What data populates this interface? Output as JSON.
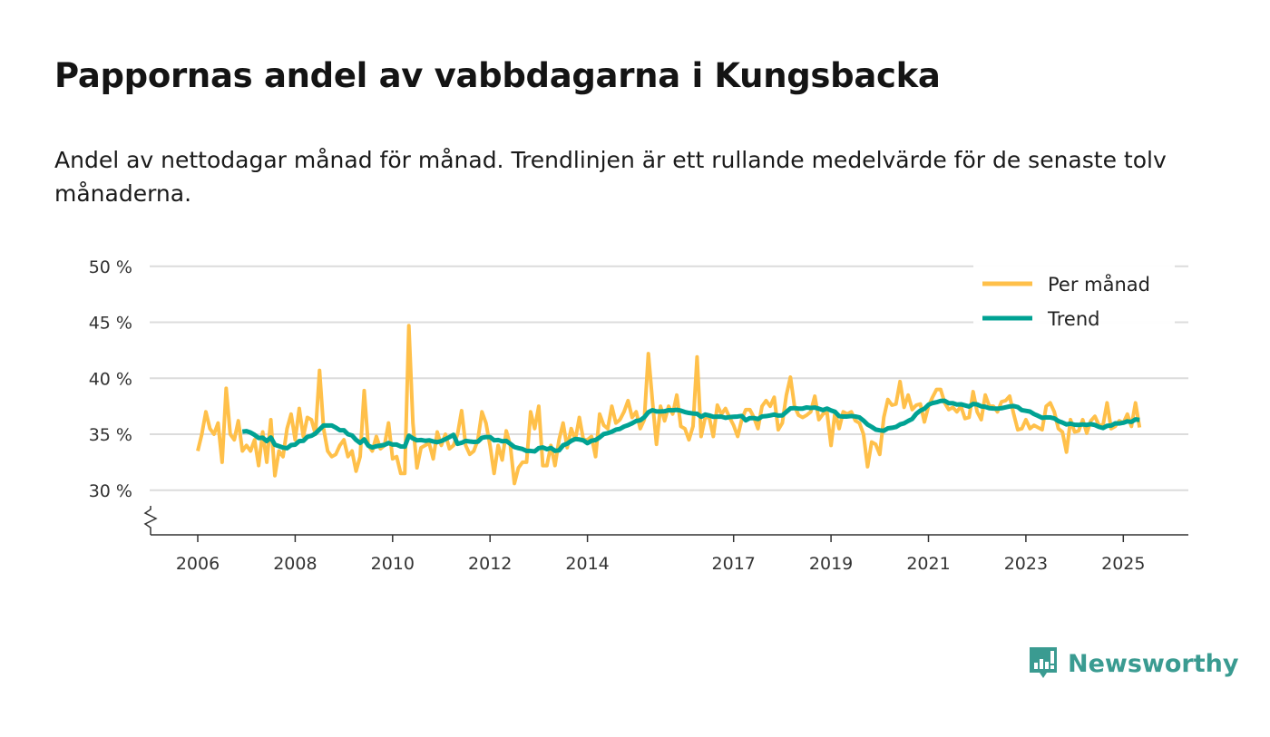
{
  "title": "Pappornas andel av vabbdagarna i Kungsbacka",
  "subtitle": "Andel av nettodagar månad för månad. Trendlinjen är ett rullande medelvärde för de senaste tolv månaderna.",
  "brand": {
    "name": "Newsworthy",
    "color": "#3a9b91"
  },
  "chart_data": {
    "type": "line",
    "title": "Pappornas andel av vabbdagarna i Kungsbacka",
    "xlabel": "",
    "ylabel": "",
    "ylim": [
      26,
      50
    ],
    "y_ticks": [
      30,
      35,
      40,
      45,
      50
    ],
    "y_tick_labels": [
      "30 %",
      "35 %",
      "40 %",
      "45 %",
      "50 %"
    ],
    "x_ticks": [
      2006,
      2008,
      2010,
      2012,
      2014,
      2017,
      2019,
      2021,
      2023,
      2025
    ],
    "x_tick_labels": [
      "2006",
      "2008",
      "2010",
      "2012",
      "2014",
      "2017",
      "2019",
      "2021",
      "2023",
      "2025"
    ],
    "xlim": [
      2005.1,
      2026.0
    ],
    "start": 2006.0,
    "legend_position": "top-right",
    "grid": true,
    "series": [
      {
        "name": "Per månad",
        "color": "#ffc04a",
        "values": [
          33.5,
          35,
          37,
          35.5,
          35,
          36,
          32.5,
          39.1,
          35,
          34.5,
          36.2,
          33.5,
          34,
          33.5,
          34.5,
          32.2,
          35.2,
          32.5,
          36.3,
          31.3,
          33.5,
          33,
          35.5,
          36.8,
          34.5,
          37.3,
          34.8,
          36.5,
          36.3,
          35,
          40.7,
          35.5,
          33.5,
          33,
          33.2,
          34,
          34.5,
          33,
          33.5,
          31.7,
          33,
          38.9,
          34,
          33.5,
          34.8,
          33.7,
          34,
          36,
          32.8,
          33,
          31.5,
          31.5,
          44.7,
          36,
          32,
          33.8,
          34,
          34.2,
          32.8,
          35.2,
          34,
          35,
          33.7,
          34,
          35,
          37.1,
          34,
          33.2,
          33.5,
          34.5,
          37,
          36,
          34,
          31.5,
          34,
          32.7,
          35.3,
          34,
          30.6,
          32,
          32.5,
          32.5,
          37,
          35.5,
          37.5,
          32.2,
          32.2,
          34,
          32.2,
          34.5,
          36,
          33.8,
          35.5,
          34.5,
          36.5,
          34.5,
          34.5,
          34.8,
          33,
          36.8,
          35.8,
          35.5,
          37.5,
          36,
          36.3,
          37,
          38,
          36.5,
          37,
          35.5,
          36.3,
          42.2,
          38,
          34.1,
          37.5,
          36.2,
          37.5,
          36.8,
          38.5,
          35.7,
          35.5,
          34.5,
          35.7,
          41.9,
          34.8,
          36.5,
          36.5,
          34.8,
          37.6,
          36.8,
          37.3,
          36.5,
          35.8,
          34.8,
          36.3,
          37.2,
          37.2,
          36.5,
          35.5,
          37.5,
          38,
          37.5,
          38.3,
          35.4,
          36,
          38.5,
          40.1,
          37.5,
          36.7,
          36.5,
          36.7,
          37,
          38.4,
          36.3,
          36.8,
          37,
          34,
          37,
          35.5,
          37,
          36.8,
          37,
          36.2,
          36,
          35,
          32.1,
          34.3,
          34.1,
          33.2,
          36.5,
          38.1,
          37.6,
          37.7,
          39.7,
          37.4,
          38.5,
          37.2,
          37.6,
          37.7,
          36.1,
          37.5,
          38.3,
          39,
          39,
          37.8,
          37.2,
          37.4,
          37,
          37.5,
          36.4,
          36.5,
          38.8,
          37,
          36.3,
          38.5,
          37.5,
          37.5,
          37,
          37.9,
          38,
          38.4,
          36.8,
          35.4,
          35.5,
          36.3,
          35.5,
          35.8,
          35.6,
          35.4,
          37.5,
          37.8,
          37,
          35.5,
          35.2,
          33.4,
          36.3,
          35.2,
          35.3,
          36.3,
          35.1,
          36.2,
          36.6,
          35.8,
          35.8,
          37.8,
          35.5,
          35.7,
          36.2,
          36,
          36.8,
          35.7,
          37.8,
          35.6
        ]
      },
      {
        "name": "Trend",
        "color": "#00a293",
        "window": 12
      }
    ]
  }
}
